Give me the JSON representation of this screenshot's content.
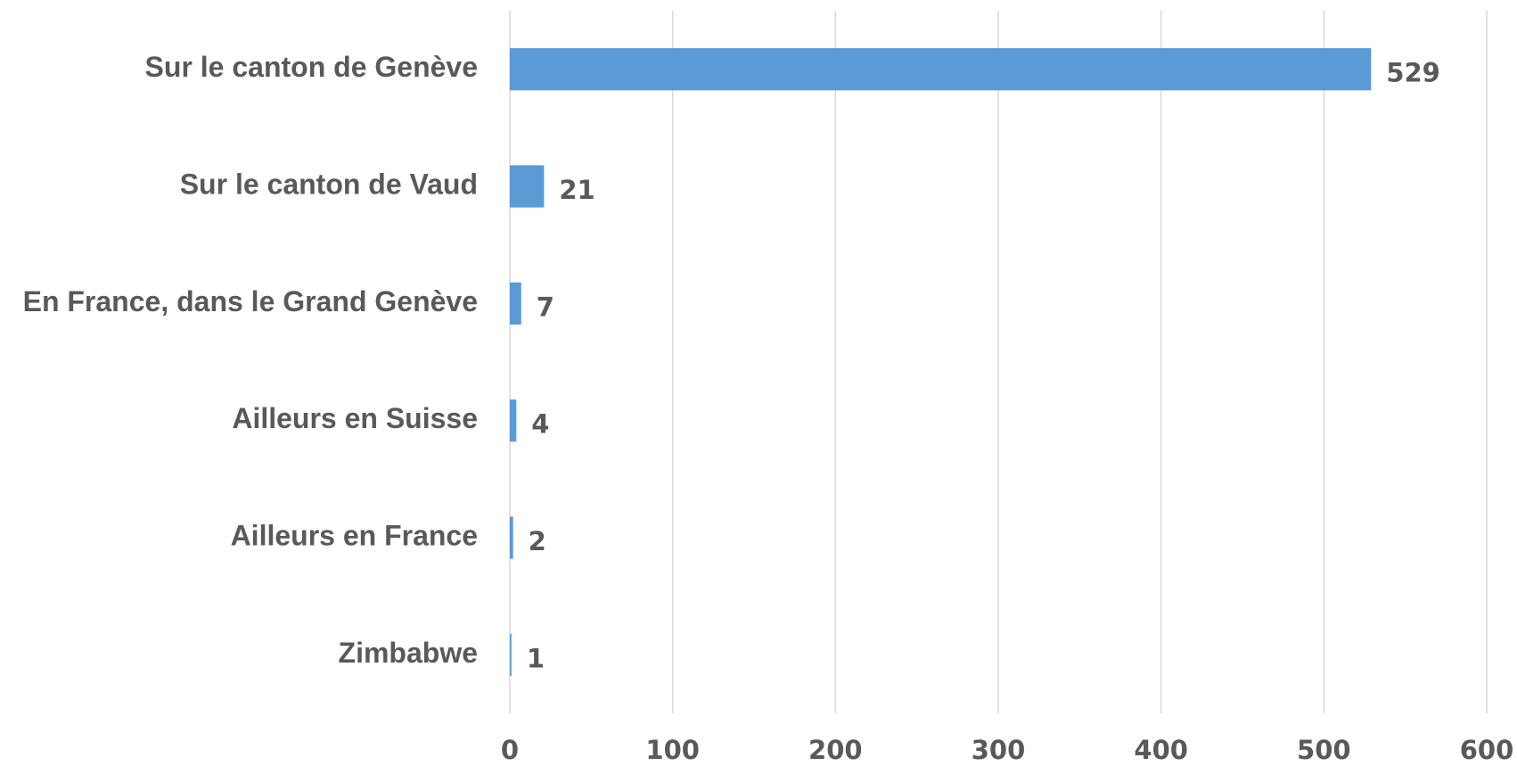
{
  "chart_data": {
    "type": "bar",
    "orientation": "horizontal",
    "categories": [
      "Sur le canton de Genève",
      "Sur le canton de Vaud",
      "En France, dans le Grand Genève",
      "Ailleurs en Suisse",
      "Ailleurs en France",
      "Zimbabwe"
    ],
    "values": [
      529,
      21,
      7,
      4,
      2,
      1
    ],
    "color": "#5b9bd5",
    "xlim": [
      0,
      600
    ],
    "xticks": [
      0,
      100,
      200,
      300,
      400,
      500,
      600
    ],
    "grid": true
  }
}
